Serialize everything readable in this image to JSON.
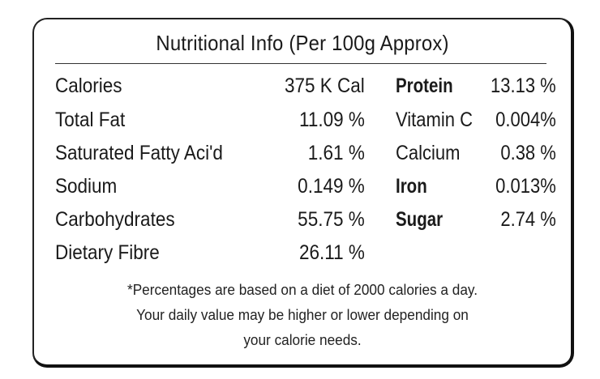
{
  "title": "Nutritional Info (Per 100g  Approx)",
  "left_rows": [
    {
      "label": "Calories",
      "value": "375 K Cal"
    },
    {
      "label": "Total Fat",
      "value": "11.09 %"
    },
    {
      "label": "Saturated Fatty Aci'd",
      "value": "1.61  %"
    },
    {
      "label": "Sodium",
      "value": "0.149 %"
    },
    {
      "label": "Carbohydrates",
      "value": "55.75  %"
    },
    {
      "label": "Dietary Fibre",
      "value": "26.11  %"
    }
  ],
  "right_rows": [
    {
      "label": "Protein",
      "value": "13.13 %",
      "bold": true
    },
    {
      "label": "Vitamin C",
      "value": "0.004%",
      "bold": false
    },
    {
      "label": "Calcium",
      "value": "0.38 %",
      "bold": false
    },
    {
      "label": "Iron",
      "value": "0.013%",
      "bold": true
    },
    {
      "label": "Sugar",
      "value": "2.74 %",
      "bold": true
    }
  ],
  "footnote": [
    "*Percentages are based on a diet of 2000 calories a day.",
    "Your daily value may be higher or lower depending on",
    "your calorie needs."
  ]
}
